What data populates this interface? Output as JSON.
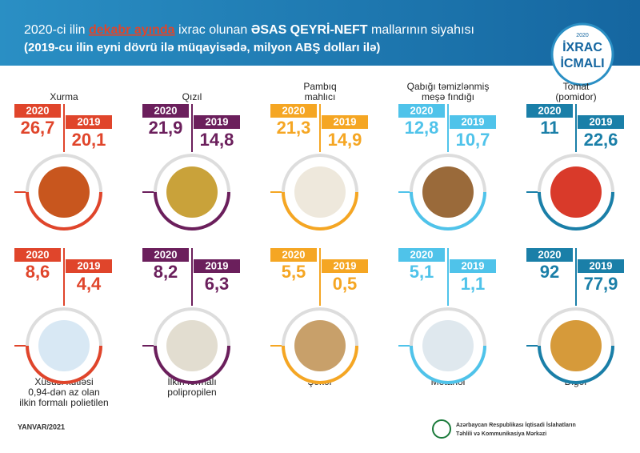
{
  "header": {
    "title_parts": [
      "2020-ci ilin ",
      "dekabr ayında",
      " ixrac olunan ",
      "ƏSAS QEYRİ-NEFT",
      " mallarının siyahısı"
    ],
    "subtitle": "(2019-cu ilin eyni dövrü ilə müqayisədə, milyon ABŞ dolları ilə)",
    "badge": {
      "year": "2020",
      "line1": "İXRAC",
      "line2": "İCMALI"
    }
  },
  "items": [
    {
      "label": [
        "Xurma"
      ],
      "year_a": "2020",
      "value_a": "26,7",
      "year_b": "2019",
      "value_b": "20,1"
    },
    {
      "label": [
        "Qızıl"
      ],
      "year_a": "2020",
      "value_a": "21,9",
      "year_b": "2019",
      "value_b": "14,8"
    },
    {
      "label": [
        "Pambıq",
        "mahlıcı"
      ],
      "year_a": "2020",
      "value_a": "21,3",
      "year_b": "2019",
      "value_b": "14,9"
    },
    {
      "label": [
        "Qabığı təmizlənmiş",
        "meşə fındığı"
      ],
      "year_a": "2020",
      "value_a": "12,8",
      "year_b": "2019",
      "value_b": "10,7"
    },
    {
      "label": [
        "Tomat",
        "(pomidor)"
      ],
      "year_a": "2020",
      "value_a": "11",
      "year_b": "2019",
      "value_b": "22,6"
    },
    {
      "label": [
        "Xüsusi kütləsi",
        "0,94-dən az olan",
        "ilkin formalı polietilen"
      ],
      "year_a": "2020",
      "value_a": "8,6",
      "year_b": "2019",
      "value_b": "4,4"
    },
    {
      "label": [
        "İlkin formalı",
        "polipropilen"
      ],
      "year_a": "2020",
      "value_a": "8,2",
      "year_b": "2019",
      "value_b": "6,3"
    },
    {
      "label": [
        "Şəkər"
      ],
      "year_a": "2020",
      "value_a": "5,5",
      "year_b": "2019",
      "value_b": "0,5"
    },
    {
      "label": [
        "Metanol"
      ],
      "year_a": "2020",
      "value_a": "5,1",
      "year_b": "2019",
      "value_b": "1,1"
    },
    {
      "label": [
        "Digər"
      ],
      "year_a": "2020",
      "value_a": "92",
      "year_b": "2019",
      "value_b": "77,9"
    }
  ],
  "footer": {
    "date": "YANVAR/2021",
    "org": [
      "Azərbaycan Respublikası İqtisadi İslahatların",
      "Təhlili və Kommunikasiya Mərkəzi"
    ]
  }
}
